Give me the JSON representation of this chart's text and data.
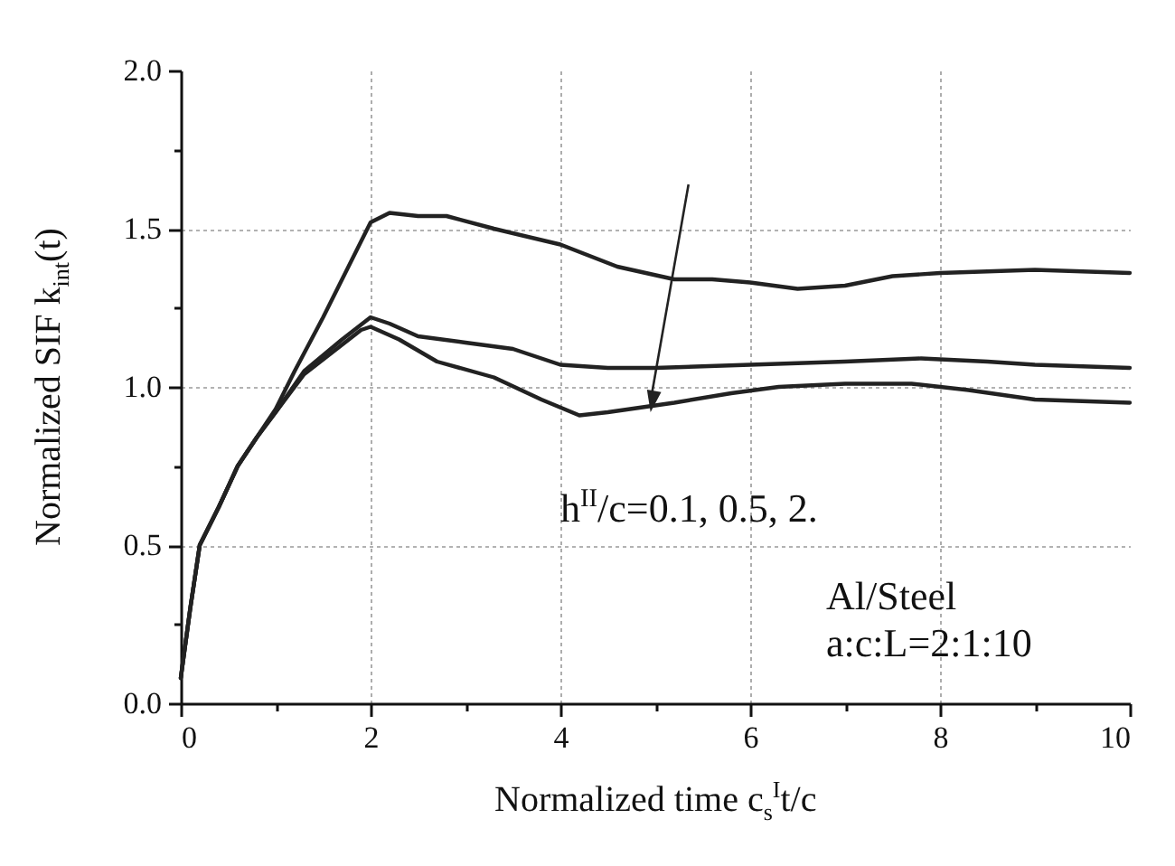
{
  "chart_data": {
    "type": "line",
    "xlabel": "Normalized time c$_{s}$$^{I}$t/c",
    "ylabel": "Normalized SIF k$_{int}$(t)",
    "annotations": [
      "h$^{II}$/c=0.1, 0.5, 2.",
      "Al/Steel",
      "a:c:L=2:1:10"
    ],
    "xlim": [
      0,
      10
    ],
    "ylim": [
      0,
      2
    ],
    "xticks": [
      0,
      {
        "value": 1,
        "label": null
      },
      2,
      {
        "value": 3,
        "label": null
      },
      4,
      {
        "value": 5,
        "label": null
      },
      6,
      {
        "value": 7,
        "label": null
      },
      8,
      {
        "value": 9,
        "label": null
      },
      10
    ],
    "yticks": [
      {
        "value": 0,
        "label": "0.0"
      },
      {
        "value": 0.25,
        "label": null
      },
      {
        "value": 0.5,
        "label": "0.5"
      },
      {
        "value": 0.75,
        "label": null
      },
      {
        "value": 1,
        "label": "1.0"
      },
      {
        "value": 1.25,
        "label": null
      },
      {
        "value": 1.5,
        "label": "1.5"
      },
      {
        "value": 1.75,
        "label": null
      },
      {
        "value": 2,
        "label": "2.0"
      }
    ],
    "grid": true,
    "marker": "none",
    "line_style": "solid",
    "series": [
      {
        "color": "#222222",
        "x": [
          0,
          0.1,
          0.2,
          0.4,
          0.6,
          0.8,
          1.0,
          1.2,
          1.5,
          2.0,
          2.2,
          2.5,
          2.8,
          3.3,
          4.0,
          4.6,
          5.2,
          5.6,
          6.0,
          6.5,
          7.0,
          7.5,
          8.0,
          9.0,
          10.0
        ],
        "values": [
          0.08,
          0.3,
          0.5,
          0.62,
          0.75,
          0.84,
          0.93,
          1.05,
          1.22,
          1.52,
          1.55,
          1.54,
          1.54,
          1.5,
          1.45,
          1.38,
          1.34,
          1.34,
          1.33,
          1.31,
          1.32,
          1.35,
          1.36,
          1.37,
          1.36
        ]
      },
      {
        "color": "#222222",
        "x": [
          0,
          0.1,
          0.2,
          0.4,
          0.6,
          0.8,
          1.0,
          1.3,
          1.7,
          2.0,
          2.2,
          2.5,
          3.0,
          3.5,
          4.0,
          4.5,
          5.0,
          6.0,
          7.0,
          7.8,
          8.5,
          9.0,
          10.0
        ],
        "values": [
          0.08,
          0.3,
          0.5,
          0.62,
          0.75,
          0.84,
          0.92,
          1.05,
          1.15,
          1.22,
          1.2,
          1.16,
          1.14,
          1.12,
          1.07,
          1.06,
          1.06,
          1.07,
          1.08,
          1.09,
          1.08,
          1.07,
          1.06
        ]
      },
      {
        "color": "#222222",
        "x": [
          0,
          0.1,
          0.2,
          0.4,
          0.6,
          0.8,
          1.0,
          1.3,
          1.9,
          2.0,
          2.3,
          2.7,
          3.3,
          3.8,
          4.2,
          4.5,
          5.2,
          5.8,
          6.3,
          7.0,
          7.7,
          8.3,
          9.0,
          10.0
        ],
        "values": [
          0.08,
          0.3,
          0.5,
          0.62,
          0.75,
          0.84,
          0.92,
          1.04,
          1.18,
          1.19,
          1.15,
          1.08,
          1.03,
          0.96,
          0.91,
          0.92,
          0.95,
          0.98,
          1.0,
          1.01,
          1.01,
          0.99,
          0.96,
          0.95
        ]
      }
    ]
  }
}
